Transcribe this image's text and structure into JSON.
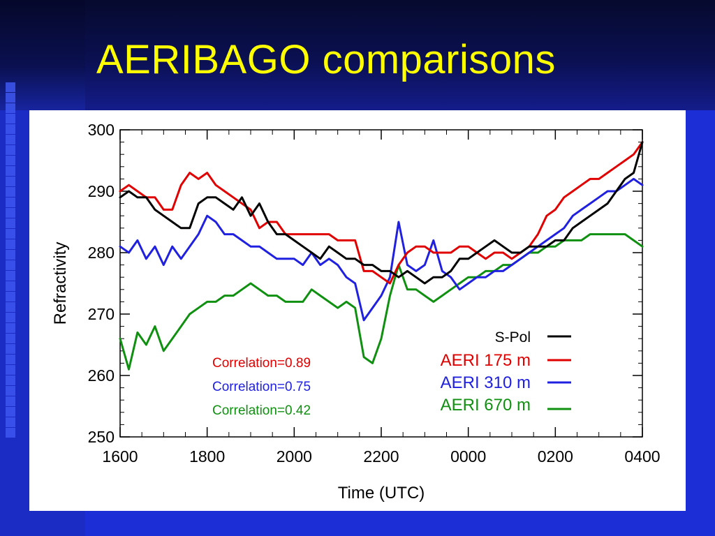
{
  "slide": {
    "title": "AERIBAGO comparisons"
  },
  "chart_data": {
    "type": "line",
    "title": "",
    "xlabel": "Time (UTC)",
    "ylabel": "Refractivity",
    "x_ticks": [
      "1600",
      "1800",
      "2000",
      "2200",
      "0000",
      "0200",
      "0400"
    ],
    "x_range_hours": [
      0,
      12
    ],
    "ylim": [
      250,
      300
    ],
    "y_ticks": [
      250,
      260,
      270,
      280,
      290,
      300
    ],
    "legend_position": "right-middle",
    "correlation_position": "left-middle",
    "correlations": [
      {
        "label": "Correlation=0.89",
        "color": "#e00000"
      },
      {
        "label": "Correlation=0.75",
        "color": "#2020e0"
      },
      {
        "label": "Correlation=0.42",
        "color": "#109010"
      }
    ],
    "x": [
      0,
      0.2,
      0.4,
      0.6,
      0.8,
      1,
      1.2,
      1.4,
      1.6,
      1.8,
      2,
      2.2,
      2.4,
      2.6,
      2.8,
      3,
      3.2,
      3.4,
      3.6,
      3.8,
      4,
      4.2,
      4.4,
      4.6,
      4.8,
      5,
      5.2,
      5.4,
      5.6,
      5.8,
      6,
      6.2,
      6.4,
      6.6,
      6.8,
      7,
      7.2,
      7.4,
      7.6,
      7.8,
      8,
      8.2,
      8.4,
      8.6,
      8.8,
      9,
      9.2,
      9.4,
      9.6,
      9.8,
      10,
      10.2,
      10.4,
      10.6,
      10.8,
      11,
      11.2,
      11.4,
      11.6,
      11.8,
      12
    ],
    "series": [
      {
        "name": "S-Pol",
        "color": "#000000",
        "values": [
          289,
          290,
          289,
          289,
          287,
          286,
          285,
          284,
          284,
          288,
          289,
          289,
          288,
          287,
          289,
          286,
          288,
          285,
          283,
          283,
          282,
          281,
          280,
          279,
          281,
          280,
          279,
          279,
          278,
          278,
          277,
          277,
          276,
          277,
          276,
          275,
          276,
          276,
          277,
          279,
          279,
          280,
          281,
          282,
          281,
          280,
          280,
          281,
          281,
          281,
          282,
          282,
          284,
          285,
          286,
          287,
          288,
          290,
          292,
          293,
          298
        ]
      },
      {
        "name": "AERI 175 m",
        "color": "#e00000",
        "values": [
          290,
          291,
          290,
          289,
          289,
          287,
          287,
          291,
          293,
          292,
          293,
          291,
          290,
          289,
          288,
          287,
          284,
          285,
          285,
          283,
          283,
          283,
          283,
          283,
          283,
          282,
          282,
          282,
          277,
          277,
          276,
          275,
          278,
          280,
          281,
          281,
          280,
          280,
          280,
          281,
          281,
          280,
          279,
          280,
          280,
          279,
          280,
          281,
          283,
          286,
          287,
          289,
          290,
          291,
          292,
          292,
          293,
          294,
          295,
          296,
          298
        ]
      },
      {
        "name": "AERI 310 m",
        "color": "#2020e0",
        "values": [
          281,
          280,
          282,
          279,
          281,
          278,
          281,
          279,
          281,
          283,
          286,
          285,
          283,
          283,
          282,
          281,
          281,
          280,
          279,
          279,
          279,
          278,
          280,
          278,
          279,
          278,
          276,
          275,
          269,
          271,
          273,
          276,
          285,
          278,
          277,
          278,
          282,
          277,
          276,
          274,
          275,
          276,
          276,
          277,
          277,
          278,
          279,
          280,
          281,
          282,
          283,
          284,
          286,
          287,
          288,
          289,
          290,
          290,
          291,
          292,
          291
        ]
      },
      {
        "name": "AERI 670 m",
        "color": "#109010",
        "values": [
          266,
          261,
          267,
          265,
          268,
          264,
          266,
          268,
          270,
          271,
          272,
          272,
          273,
          273,
          274,
          275,
          274,
          273,
          273,
          272,
          272,
          272,
          274,
          273,
          272,
          271,
          272,
          271,
          263,
          262,
          266,
          273,
          278,
          274,
          274,
          273,
          272,
          273,
          274,
          275,
          276,
          276,
          277,
          277,
          278,
          278,
          279,
          280,
          280,
          281,
          281,
          282,
          282,
          282,
          283,
          283,
          283,
          283,
          283,
          282,
          281
        ]
      }
    ]
  }
}
